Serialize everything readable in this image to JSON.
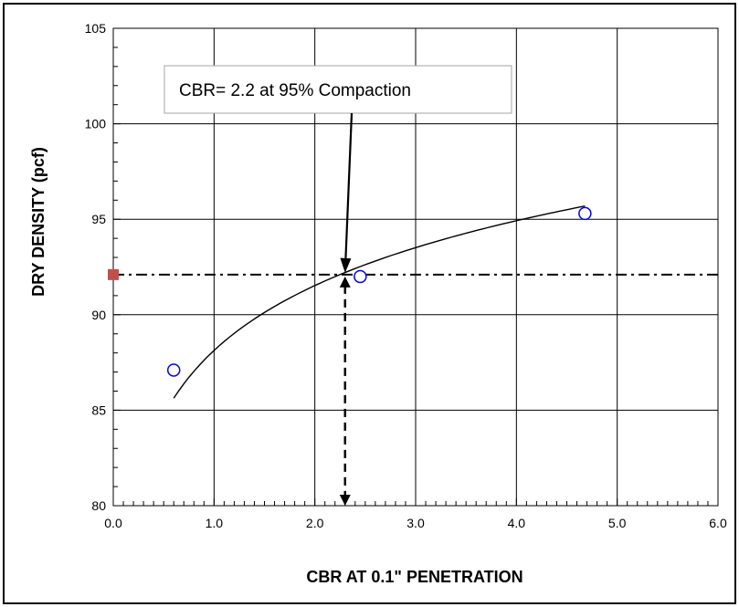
{
  "chart_data": {
    "type": "scatter",
    "xlabel": "CBR AT 0.1\" PENETRATION",
    "ylabel": "DRY DENSITY (pcf)",
    "xlim": [
      0,
      6
    ],
    "ylim": [
      80,
      105
    ],
    "x_ticks": [
      "0.0",
      "1.0",
      "2.0",
      "3.0",
      "4.0",
      "5.0",
      "6.0"
    ],
    "y_ticks": [
      "80",
      "85",
      "90",
      "95",
      "100",
      "105"
    ],
    "grid": true,
    "series": [
      {
        "points": [
          {
            "x": 0.6,
            "y": 87.1
          },
          {
            "x": 2.45,
            "y": 92.0
          },
          {
            "x": 4.68,
            "y": 95.3
          }
        ],
        "color": "#0000ff"
      }
    ],
    "fit_curve": {
      "a": 88.13,
      "b": 4.9,
      "x_range": [
        0.6,
        4.68
      ],
      "color": "#000000"
    },
    "reference_level": {
      "y": 92.1,
      "color": "#000000"
    },
    "reference_marker": {
      "x": 0.0,
      "y": 92.1,
      "color": "#c0504d"
    },
    "reference_x": 2.3,
    "annotation": {
      "text": "CBR= 2.2 at 95% Compaction",
      "arrow_to": {
        "x": 2.3,
        "y": 92.1
      }
    }
  }
}
